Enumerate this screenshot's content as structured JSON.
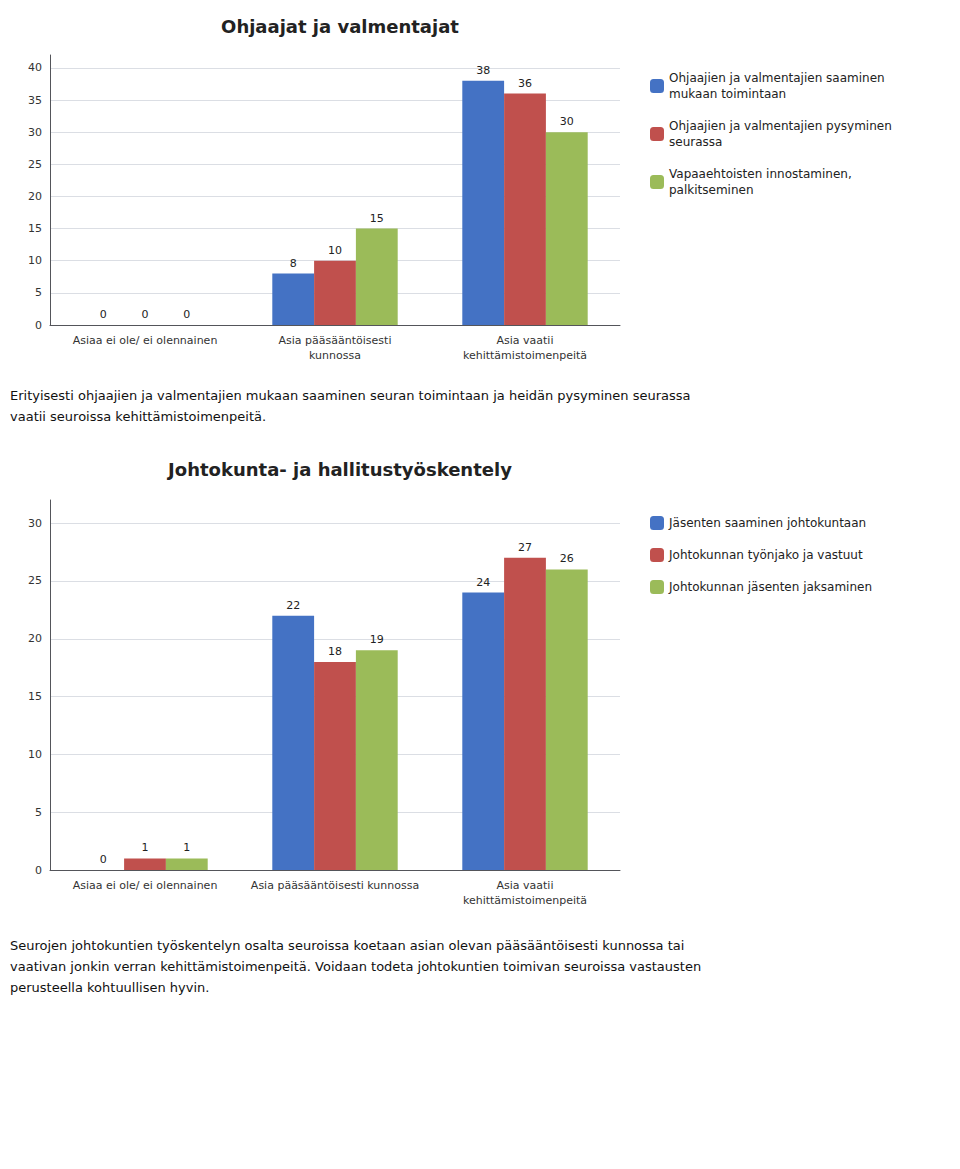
{
  "chart_data": [
    {
      "type": "bar",
      "title": "Ohjaajat ja valmentajat",
      "categories": [
        "Asiaa ei ole/ ei olennainen",
        "Asia pääsääntöisesti\nkunnossa",
        "Asia vaatii\nkehittämistoimenpeitä"
      ],
      "series": [
        {
          "name": "Ohjaajien ja valmentajien saaminen\nmukaan toimintaan",
          "color": "#4472C4",
          "values": [
            0,
            8,
            38
          ]
        },
        {
          "name": "Ohjaajien ja valmentajien pysyminen\nseurassa",
          "color": "#C0504D",
          "values": [
            0,
            10,
            36
          ]
        },
        {
          "name": "Vapaaehtoisten innostaminen,\npalkitseminen",
          "color": "#9BBB59",
          "values": [
            0,
            15,
            30
          ]
        }
      ],
      "ylim": [
        0,
        42
      ],
      "yticks": [
        0,
        5,
        10,
        15,
        20,
        25,
        30,
        35,
        40
      ],
      "grid": true,
      "data_labels": true,
      "legend": "right",
      "annotations": [
        "Erityisesti ohjaajien ja valmentajien mukaan saaminen seuran toimintaan ja heidän pysyminen seurassa\nvaatii seuroissa kehittämistoimenpeitä."
      ]
    },
    {
      "type": "bar",
      "title": "Johtokunta- ja hallitustyöskentely",
      "categories": [
        "Asiaa ei ole/ ei olennainen",
        "Asia pääsääntöisesti kunnossa",
        "Asia vaatii\nkehittämistoimenpeitä"
      ],
      "series": [
        {
          "name": "Jäsenten saaminen johtokuntaan",
          "color": "#4472C4",
          "values": [
            0,
            22,
            24
          ]
        },
        {
          "name": "Johtokunnan työnjako ja vastuut",
          "color": "#C0504D",
          "values": [
            1,
            18,
            27
          ]
        },
        {
          "name": "Johtokunnan jäsenten jaksaminen",
          "color": "#9BBB59",
          "values": [
            1,
            19,
            26
          ]
        }
      ],
      "ylim": [
        0,
        32
      ],
      "yticks": [
        0,
        5,
        10,
        15,
        20,
        25,
        30
      ],
      "grid": true,
      "data_labels": true,
      "legend": "right",
      "annotations": [
        "Seurojen johtokuntien työskentelyn osalta seuroissa koetaan asian olevan pääsääntöisesti kunnossa tai\nvaativan jonkin verran kehittämistoimenpeitä. Voidaan todeta johtokuntien toimivan seuroissa vastausten\nperusteella kohtuullisen hyvin."
      ]
    }
  ]
}
